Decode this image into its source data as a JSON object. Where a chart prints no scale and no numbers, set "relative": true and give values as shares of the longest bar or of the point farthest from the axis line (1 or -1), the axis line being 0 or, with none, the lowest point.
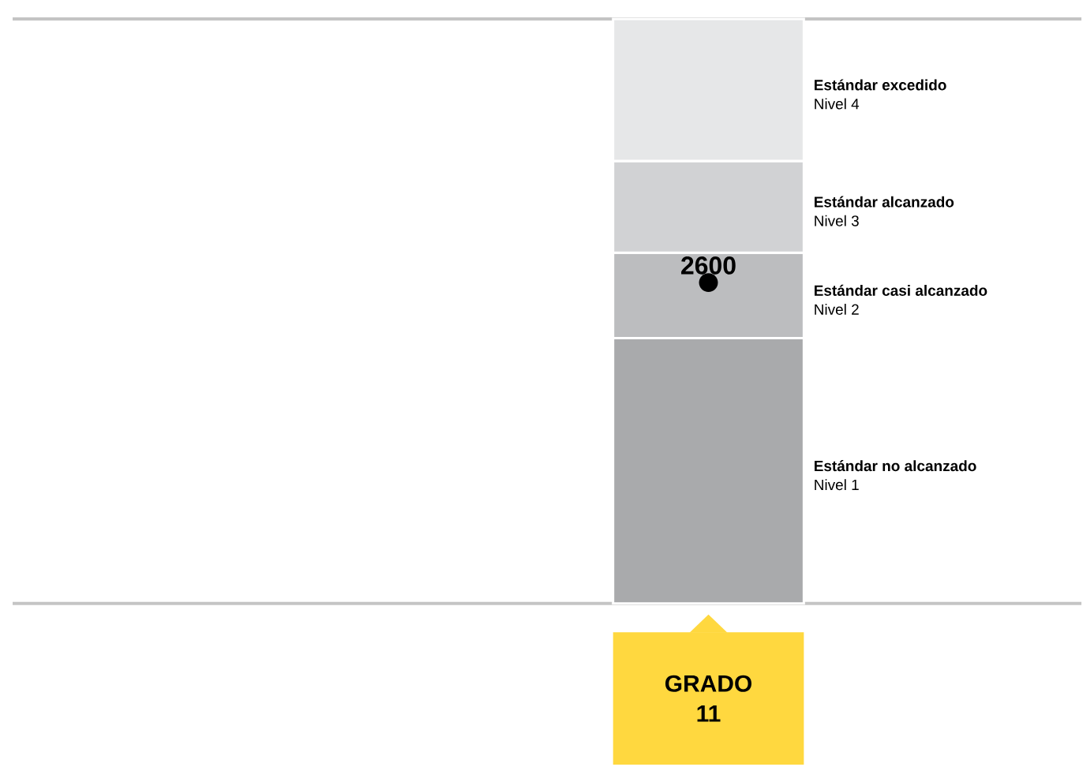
{
  "chart_data": {
    "type": "bar",
    "stacked": true,
    "relative": true,
    "categories": [
      "GRADO 11"
    ],
    "series": [
      {
        "name": "Estándar no alcanzado",
        "color": "#a9aaac",
        "values": [
          0.454
        ]
      },
      {
        "name": "Estándar casi alcanzado",
        "color": "#bcbdbf",
        "values": [
          0.146
        ]
      },
      {
        "name": "Estándar alcanzado",
        "color": "#d1d2d4",
        "values": [
          0.157
        ]
      },
      {
        "name": "Estándar excedido",
        "color": "#e6e7e8",
        "values": [
          0.243
        ]
      }
    ],
    "ref_lines": [
      {
        "axis": "y",
        "value": 1,
        "color": "#c4c4c4"
      }
    ],
    "annotations": [
      "Nivel 1",
      "Nivel 2",
      "Nivel 3",
      "Nivel 4",
      {
        "text": "2600",
        "x": "GRADO 11",
        "y": 0.549
      }
    ]
  }
}
